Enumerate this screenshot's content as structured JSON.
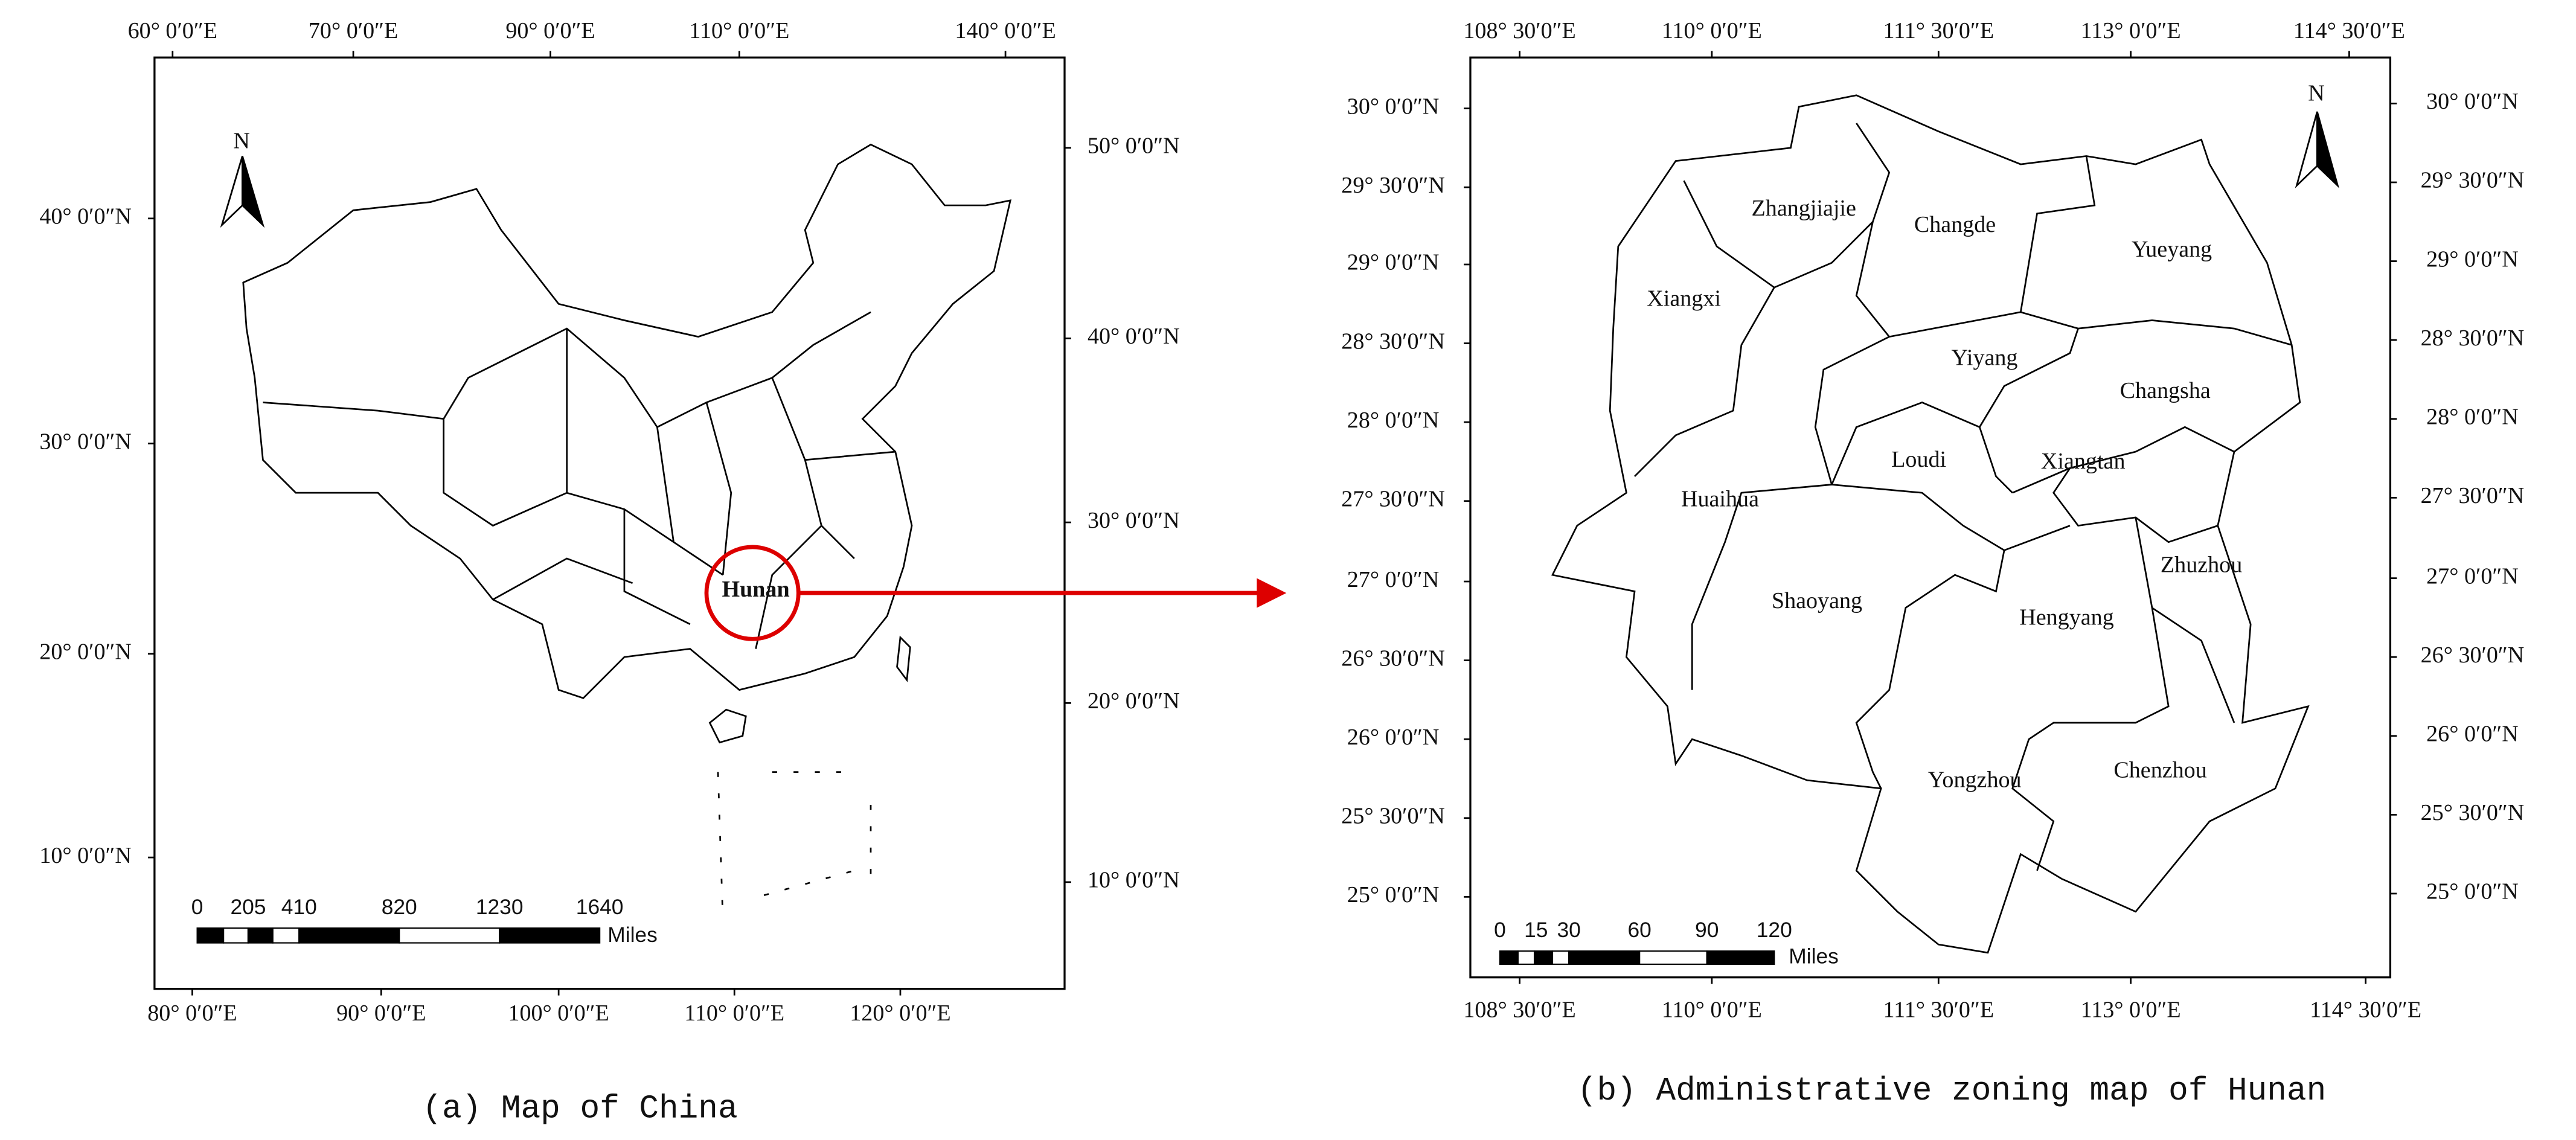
{
  "panels": [
    {
      "caption": "(a) Map of China",
      "top_labels": [
        "60° 0′0″E",
        "70° 0′0″E",
        "90° 0′0″E",
        "110° 0′0″E",
        "140° 0′0″E"
      ],
      "bottom_labels": [
        "80° 0′0″E",
        "90° 0′0″E",
        "100° 0′0″E",
        "110° 0′0″E",
        "120° 0′0″E"
      ],
      "left_labels": [
        "40° 0′0″N",
        "30° 0′0″N",
        "20° 0′0″N",
        "10° 0′0″N"
      ],
      "right_labels": [
        "50° 0′0″N",
        "40° 0′0″N",
        "30° 0′0″N",
        "20° 0′0″N",
        "10° 0′0″N"
      ],
      "north": "N",
      "highlight": "Hunan",
      "scale_bar": {
        "labels": [
          "0",
          "205",
          "410",
          "820",
          "1230",
          "1640"
        ],
        "unit": "Miles"
      }
    },
    {
      "caption": "(b) Administrative zoning map of Hunan",
      "top_labels": [
        "108° 30′0″E",
        "110° 0′0″E",
        "111° 30′0″E",
        "113° 0′0″E",
        "114° 30′0″E"
      ],
      "bottom_labels": [
        "108° 30′0″E",
        "110° 0′0″E",
        "111° 30′0″E",
        "113° 0′0″E",
        "114° 30′0″E"
      ],
      "left_labels": [
        "30° 0′0″N",
        "29° 30′0″N",
        "29° 0′0″N",
        "28° 30′0″N",
        "28° 0′0″N",
        "27° 30′0″N",
        "27° 0′0″N",
        "26° 30′0″N",
        "26° 0′0″N",
        "25° 30′0″N",
        "25° 0′0″N"
      ],
      "right_labels": [
        "30° 0′0″N",
        "29° 30′0″N",
        "29° 0′0″N",
        "28° 30′0″N",
        "28° 0′0″N",
        "27° 30′0″N",
        "27° 0′0″N",
        "26° 30′0″N",
        "26° 0′0″N",
        "25° 30′0″N",
        "25° 0′0″N"
      ],
      "north": "N",
      "regions": [
        "Zhangjiajie",
        "Changde",
        "Yueyang",
        "Xiangxi",
        "Yiyang",
        "Changsha",
        "Loudi",
        "Xiangtan",
        "Huaihua",
        "Zhuzhou",
        "Shaoyang",
        "Hengyang",
        "Chenzhou",
        "Yongzhou"
      ],
      "scale_bar": {
        "labels": [
          "0",
          "15",
          "30",
          "60",
          "90",
          "120"
        ],
        "unit": "Miles"
      }
    }
  ]
}
